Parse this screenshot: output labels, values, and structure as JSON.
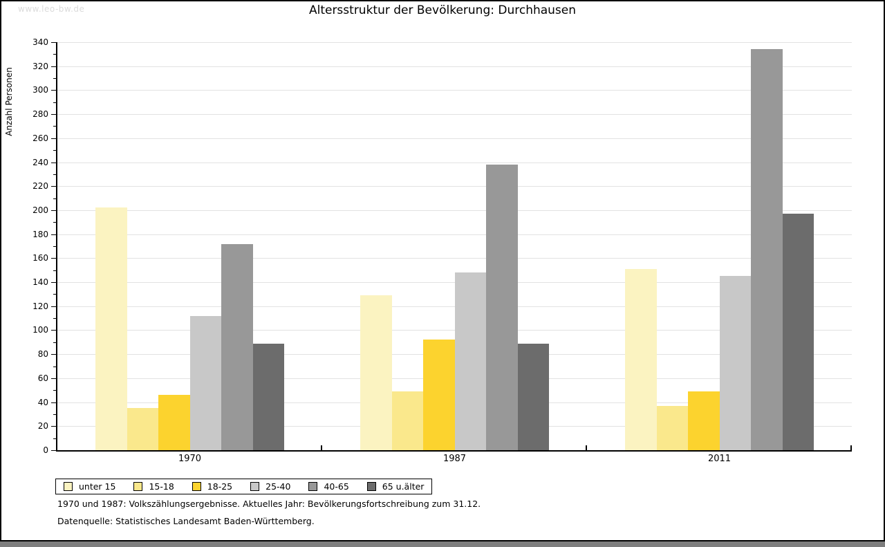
{
  "window": {
    "watermark": "www.leo-bw.de"
  },
  "title": "Altersstruktur der Bevölkerung: Durchhausen",
  "chart_data": {
    "type": "bar",
    "title": "Altersstruktur der Bevölkerung: Durchhausen",
    "xlabel": "",
    "ylabel": "Anzahl Personen",
    "ylim": [
      0,
      340
    ],
    "ytick_step": 20,
    "yminor_tick_step": 10,
    "grid": true,
    "legend_position": "bottom-left",
    "categories": [
      "1970",
      "1987",
      "2011"
    ],
    "series": [
      {
        "name": "unter 15",
        "color": "#FBF3C1",
        "values": [
          202,
          129,
          151
        ]
      },
      {
        "name": "15-18",
        "color": "#FAE88C",
        "values": [
          35,
          49,
          37
        ]
      },
      {
        "name": "18-25",
        "color": "#FCD32E",
        "values": [
          46,
          92,
          49
        ]
      },
      {
        "name": "25-40",
        "color": "#C8C8C8",
        "values": [
          112,
          148,
          145
        ]
      },
      {
        "name": "40-65",
        "color": "#989898",
        "values": [
          172,
          238,
          334
        ]
      },
      {
        "name": "65 u.älter",
        "color": "#6C6C6C",
        "values": [
          89,
          89,
          197
        ]
      }
    ]
  },
  "footnotes": {
    "line1": "1970 und 1987: Volkszählungsergebnisse. Aktuelles Jahr: Bevölkerungsfortschreibung zum 31.12.",
    "line2": "Datenquelle: Statistisches Landesamt Baden-Württemberg."
  },
  "colors": {
    "grid": "#E2E2E2",
    "axis": "#000000",
    "watermark": "#DBDBDB",
    "bottom_strip": "#7E7E7E",
    "text": "#000000"
  }
}
